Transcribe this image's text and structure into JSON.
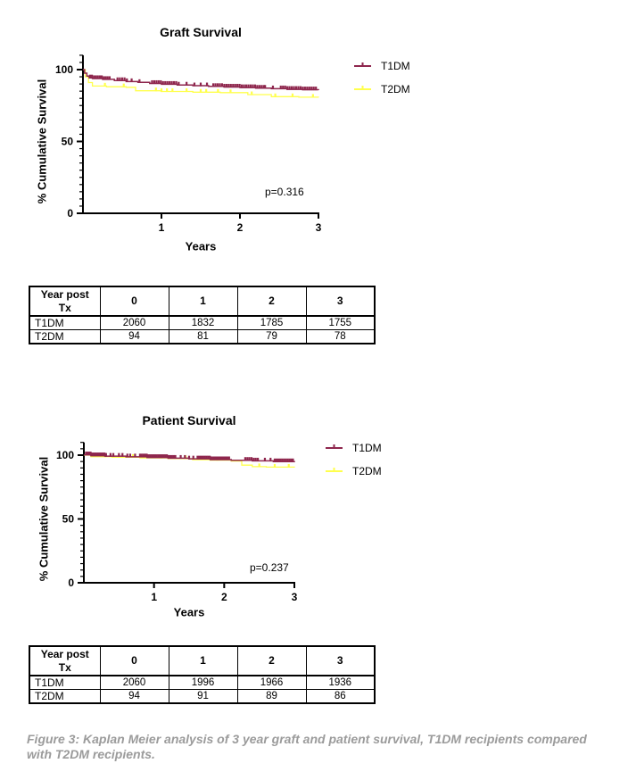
{
  "caption": "Figure 3: Kaplan Meier analysis of 3 year graft and patient survival, T1DM recipients compared with T2DM recipients.",
  "colors": {
    "t1dm": "#8e264d",
    "t2dm": "#ffff4d",
    "axis": "#000000",
    "caption_gray": "#9b9b9b"
  },
  "chart_data": [
    {
      "type": "line",
      "title": "Graft Survival",
      "xlabel": "Years",
      "ylabel": "% Cumulative Survival",
      "p_value_label": "p=0.316",
      "xticks": [
        1,
        2,
        3
      ],
      "yticks": [
        0,
        50,
        100
      ],
      "xlim": [
        0,
        3
      ],
      "ylim": [
        0,
        110
      ],
      "legend_position": "top-right",
      "series": [
        {
          "name": "T1DM",
          "color": "#8e264d",
          "steps": [
            [
              0,
              100
            ],
            [
              0.02,
              97.5
            ],
            [
              0.05,
              95.5
            ],
            [
              0.08,
              94.3
            ],
            [
              0.12,
              93.8
            ],
            [
              0.25,
              93.2
            ],
            [
              0.4,
              92.4
            ],
            [
              0.55,
              91.7
            ],
            [
              0.7,
              91.1
            ],
            [
              0.85,
              90.4
            ],
            [
              1.0,
              89.8
            ],
            [
              1.2,
              89.3
            ],
            [
              1.4,
              88.8
            ],
            [
              1.6,
              88.3
            ],
            [
              1.8,
              87.9
            ],
            [
              2.0,
              87.5
            ],
            [
              2.2,
              87.1
            ],
            [
              2.4,
              86.7
            ],
            [
              2.6,
              86.3
            ],
            [
              2.8,
              86.0
            ],
            [
              3.0,
              85.7
            ]
          ],
          "censors": [
            0.09,
            0.115,
            0.14,
            0.165,
            0.19,
            0.215,
            0.24,
            0.265,
            0.29,
            0.315,
            0.34,
            0.44,
            0.47,
            0.5,
            0.53,
            0.56,
            0.62,
            0.72,
            0.88,
            0.908,
            0.936,
            0.964,
            0.992,
            1.02,
            1.048,
            1.076,
            1.104,
            1.132,
            1.16,
            1.188,
            1.22,
            1.32,
            1.42,
            1.5,
            1.58,
            1.66,
            1.688,
            1.716,
            1.744,
            1.772,
            1.8,
            1.828,
            1.856,
            1.884,
            1.912,
            1.94,
            1.968,
            1.996,
            2.024,
            2.052,
            2.08,
            2.108,
            2.136,
            2.164,
            2.192,
            2.22,
            2.248,
            2.276,
            2.304,
            2.32,
            2.42,
            2.52,
            2.548,
            2.576,
            2.604,
            2.632,
            2.66,
            2.688,
            2.716,
            2.744,
            2.772,
            2.8,
            2.828,
            2.856,
            2.884,
            2.912,
            2.94,
            2.968
          ]
        },
        {
          "name": "T2DM",
          "color": "#ffff4d",
          "steps": [
            [
              0,
              100
            ],
            [
              0.03,
              95
            ],
            [
              0.07,
              91
            ],
            [
              0.12,
              88.6
            ],
            [
              0.3,
              88.1
            ],
            [
              0.55,
              87.7
            ],
            [
              0.67,
              85.3
            ],
            [
              1.0,
              84.8
            ],
            [
              1.4,
              84.3
            ],
            [
              1.75,
              84.0
            ],
            [
              2.1,
              82.6
            ],
            [
              2.4,
              81.2
            ],
            [
              2.75,
              80.8
            ],
            [
              3.0,
              80.6
            ]
          ],
          "censors": [
            0.28,
            0.52,
            0.93,
            1.0,
            1.07,
            1.14,
            1.32,
            1.5,
            1.57,
            1.72,
            1.88,
            2.15,
            2.45,
            2.67,
            2.93
          ]
        }
      ],
      "risk_table": {
        "corner_label": "Year post Tx",
        "columns": [
          "0",
          "1",
          "2",
          "3"
        ],
        "rows": [
          {
            "label": "T1DM",
            "values": [
              2060,
              1832,
              1785,
              1755
            ]
          },
          {
            "label": "T2DM",
            "values": [
              94,
              81,
              79,
              78
            ]
          }
        ]
      }
    },
    {
      "type": "line",
      "title": "Patient Survival",
      "xlabel": "Years",
      "ylabel": "% Cumulative Survival",
      "p_value_label": "p=0.237",
      "xticks": [
        1,
        2,
        3
      ],
      "yticks": [
        0,
        50,
        100
      ],
      "xlim": [
        0,
        3
      ],
      "ylim": [
        0,
        110
      ],
      "legend_position": "top-right",
      "series": [
        {
          "name": "T1DM",
          "color": "#8e264d",
          "steps": [
            [
              0,
              100.3
            ],
            [
              0.1,
              99.6
            ],
            [
              0.3,
              99.2
            ],
            [
              0.6,
              98.7
            ],
            [
              0.9,
              98.2
            ],
            [
              1.2,
              97.6
            ],
            [
              1.5,
              97.1
            ],
            [
              1.8,
              96.5
            ],
            [
              2.1,
              96.0
            ],
            [
              2.4,
              95.5
            ],
            [
              2.7,
              94.9
            ],
            [
              3.0,
              94.4
            ]
          ],
          "censors": [
            0.03,
            0.052,
            0.074,
            0.096,
            0.118,
            0.14,
            0.162,
            0.184,
            0.206,
            0.228,
            0.25,
            0.272,
            0.294,
            0.316,
            0.38,
            0.42,
            0.5,
            0.55,
            0.62,
            0.66,
            0.73,
            0.8,
            0.824,
            0.848,
            0.872,
            0.896,
            0.92,
            0.944,
            0.968,
            0.992,
            1.016,
            1.04,
            1.064,
            1.088,
            1.112,
            1.136,
            1.16,
            1.184,
            1.208,
            1.232,
            1.256,
            1.28,
            1.304,
            1.38,
            1.44,
            1.5,
            1.56,
            1.62,
            1.645,
            1.67,
            1.695,
            1.72,
            1.745,
            1.77,
            1.795,
            1.82,
            1.845,
            1.87,
            1.895,
            1.92,
            1.945,
            1.97,
            1.995,
            2.02,
            2.045,
            2.07,
            2.3,
            2.33,
            2.36,
            2.39,
            2.42,
            2.45,
            2.48,
            2.58,
            2.66,
            2.72,
            2.746,
            2.772,
            2.798,
            2.824,
            2.85,
            2.876,
            2.902,
            2.928,
            2.954,
            2.98
          ]
        },
        {
          "name": "T2DM",
          "color": "#ffff4d",
          "steps": [
            [
              0,
              100
            ],
            [
              0.1,
              98.8
            ],
            [
              0.4,
              98.3
            ],
            [
              0.8,
              97.8
            ],
            [
              1.2,
              97.3
            ],
            [
              1.55,
              96.4
            ],
            [
              1.8,
              96.1
            ],
            [
              2.1,
              95.4
            ],
            [
              2.25,
              92.2
            ],
            [
              2.4,
              91.0
            ],
            [
              2.6,
              90.6
            ],
            [
              3.0,
              90.3
            ]
          ],
          "censors": [
            0.3,
            0.7,
            1.1,
            1.45,
            1.9,
            2.5,
            2.72,
            2.92
          ]
        }
      ],
      "risk_table": {
        "corner_label": "Year post Tx",
        "columns": [
          "0",
          "1",
          "2",
          "3"
        ],
        "rows": [
          {
            "label": "T1DM",
            "values": [
              2060,
              1996,
              1966,
              1936
            ]
          },
          {
            "label": "T2DM",
            "values": [
              94,
              91,
              89,
              86
            ]
          }
        ]
      }
    }
  ]
}
